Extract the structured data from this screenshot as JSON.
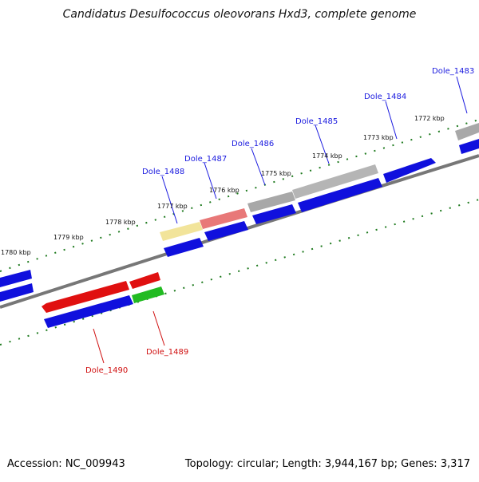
{
  "title": "Candidatus Desulfococcus oleovorans Hxd3, complete genome",
  "footer": {
    "accession": "Accession: NC_009943",
    "summary": "Topology: circular; Length: 3,944,167 bp; Genes: 3,317"
  },
  "colors": {
    "background": "#ffffff",
    "backbone": "#777777",
    "tick": "#1e7a1e",
    "blue_gene": "#1010dd",
    "red_gene": "#e01010",
    "green_gene": "#22bb22",
    "grey_gene": "#a8a8a8",
    "pink_gene": "#e87878",
    "yellow_gene": "#f2e49a",
    "label_blue": "#1a1adf",
    "label_red": "#d01010"
  },
  "scale_labels": [
    "1772 kbp",
    "1773 kbp",
    "1774 kbp",
    "1775 kbp",
    "1776 kbp",
    "1777 kbp",
    "1778 kbp",
    "1779 kbp",
    "1780 kbp"
  ],
  "gene_labels": {
    "outer": [
      "Dole_1483",
      "Dole_1484",
      "Dole_1485",
      "Dole_1486",
      "Dole_1487",
      "Dole_1488"
    ],
    "inner": [
      "Dole_1489",
      "Dole_1490"
    ]
  }
}
